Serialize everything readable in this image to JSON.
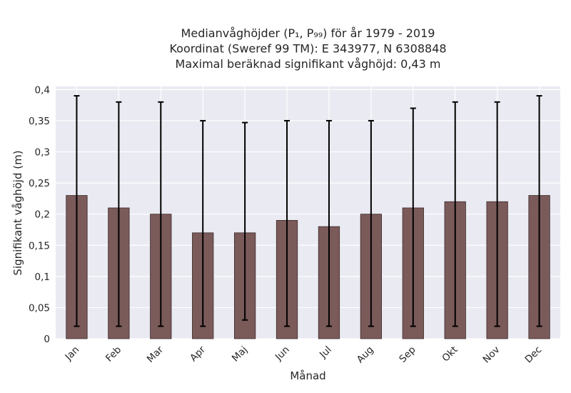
{
  "chart_data": {
    "type": "bar",
    "title_lines": [
      "Medianvåghöjder (P₁, P₉₉) för år 1979 - 2019",
      "Koordinat (Sweref 99 TM): E 343977, N 6308848",
      "Maximal beräknad signifikant våghöjd: 0,43 m"
    ],
    "xlabel": "Månad",
    "ylabel": "Signifikant våghöjd (m)",
    "categories": [
      "Jan",
      "Feb",
      "Mar",
      "Apr",
      "Maj",
      "Jun",
      "Jul",
      "Aug",
      "Sep",
      "Okt",
      "Nov",
      "Dec"
    ],
    "values": [
      0.23,
      0.21,
      0.2,
      0.17,
      0.17,
      0.19,
      0.18,
      0.2,
      0.21,
      0.22,
      0.22,
      0.23
    ],
    "p1": [
      0.02,
      0.02,
      0.02,
      0.02,
      0.03,
      0.02,
      0.02,
      0.02,
      0.02,
      0.02,
      0.02,
      0.02
    ],
    "p99": [
      0.39,
      0.38,
      0.38,
      0.35,
      0.347,
      0.35,
      0.35,
      0.35,
      0.37,
      0.38,
      0.38,
      0.39
    ],
    "ylim": [
      0,
      0.405
    ],
    "yticks": [
      0,
      0.05,
      0.1,
      0.15,
      0.2,
      0.25,
      0.3,
      0.35,
      0.4
    ],
    "ytick_labels": [
      "0",
      "0,05",
      "0,1",
      "0,15",
      "0,2",
      "0,25",
      "0,3",
      "0,35",
      "0,4"
    ],
    "grid": true,
    "colors": {
      "bar": "#7b5a5a",
      "bar_edge": "#3b2a2a",
      "background": "#eaeaf2",
      "errorbar": "#000000"
    }
  }
}
